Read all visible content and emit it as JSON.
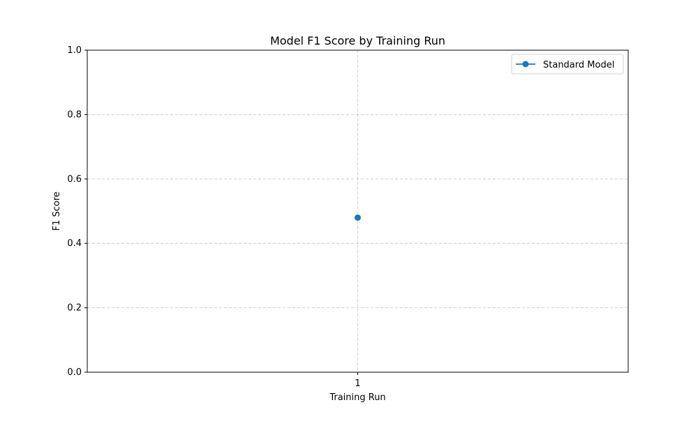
{
  "chart_data": {
    "type": "line",
    "title": "Model F1 Score by Training Run",
    "xlabel": "Training Run",
    "ylabel": "F1 Score",
    "x": [
      1
    ],
    "xlim": [
      0.5,
      1.5
    ],
    "ylim": [
      0,
      1
    ],
    "xticks": [
      1
    ],
    "xtick_labels": [
      "1"
    ],
    "yticks": [
      0,
      0.2,
      0.4,
      0.6,
      0.8,
      1.0
    ],
    "ytick_labels": [
      "0.0",
      "0.2",
      "0.4",
      "0.6",
      "0.8",
      "1.0"
    ],
    "grid": true,
    "legend_position": "top-right",
    "series": [
      {
        "name": "Standard Model",
        "values": [
          0.48
        ],
        "color": "#1f77b4",
        "marker": "circle"
      }
    ]
  }
}
